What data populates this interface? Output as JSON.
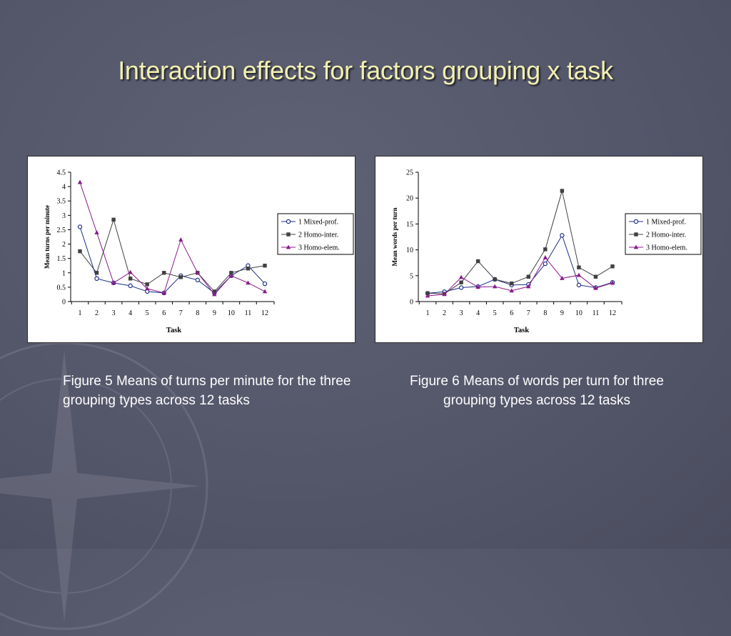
{
  "slide": {
    "title": "Interaction effects for factors grouping x task"
  },
  "captions": {
    "left": "Figure 5 Means of turns per minute for the three grouping types across 12 tasks",
    "right": "Figure 6 Means of words per turn for three grouping types across 12 tasks"
  },
  "colors": {
    "series1": "#1f2f8a",
    "series2": "#404040",
    "series3": "#8a1a8a",
    "title_text": "#f2f0b0"
  },
  "chart_data": [
    {
      "type": "line",
      "title": "",
      "xlabel": "Task",
      "ylabel": "Mean turns per minute",
      "x": [
        1,
        2,
        3,
        4,
        5,
        6,
        7,
        8,
        9,
        10,
        11,
        12
      ],
      "ylim": [
        0,
        4.5
      ],
      "yticks": [
        "0",
        "0.5",
        "1",
        "1.5",
        "2",
        "2.5",
        "3",
        "3.5",
        "4",
        "4.5"
      ],
      "legend_position": "right",
      "series": [
        {
          "name": "1 Mixed-prof.",
          "marker": "circle",
          "values": [
            2.6,
            0.8,
            0.65,
            0.55,
            0.35,
            0.3,
            0.9,
            0.75,
            0.3,
            0.9,
            1.25,
            0.62
          ]
        },
        {
          "name": "2 Homo-inter.",
          "marker": "square",
          "values": [
            1.75,
            1.0,
            2.85,
            0.8,
            0.6,
            1.0,
            0.85,
            1.0,
            0.35,
            1.0,
            1.15,
            1.25
          ]
        },
        {
          "name": "3 Homo-elem.",
          "marker": "triangle",
          "values": [
            4.15,
            2.4,
            0.65,
            1.02,
            0.45,
            0.3,
            2.15,
            1.0,
            0.25,
            0.9,
            0.65,
            0.35
          ]
        }
      ]
    },
    {
      "type": "line",
      "title": "",
      "xlabel": "Task",
      "ylabel": "Mean words per turn",
      "x": [
        1,
        2,
        3,
        4,
        5,
        6,
        7,
        8,
        9,
        10,
        11,
        12
      ],
      "ylim": [
        0,
        25
      ],
      "yticks": [
        "0",
        "5",
        "10",
        "15",
        "20",
        "25"
      ],
      "legend_position": "right",
      "series": [
        {
          "name": "1 Mixed-prof.",
          "marker": "circle",
          "values": [
            1.6,
            1.9,
            2.7,
            2.9,
            4.3,
            3.2,
            3.3,
            7.3,
            12.8,
            3.2,
            2.7,
            3.7
          ]
        },
        {
          "name": "2 Homo-inter.",
          "marker": "square",
          "values": [
            1.6,
            1.5,
            3.7,
            7.8,
            4.3,
            3.5,
            4.8,
            10.1,
            21.4,
            6.6,
            4.8,
            6.8
          ]
        },
        {
          "name": "3 Homo-elem.",
          "marker": "triangle",
          "values": [
            1.1,
            1.4,
            4.7,
            2.8,
            2.9,
            2.1,
            2.9,
            8.5,
            4.5,
            5.1,
            2.6,
            3.6
          ]
        }
      ]
    }
  ]
}
